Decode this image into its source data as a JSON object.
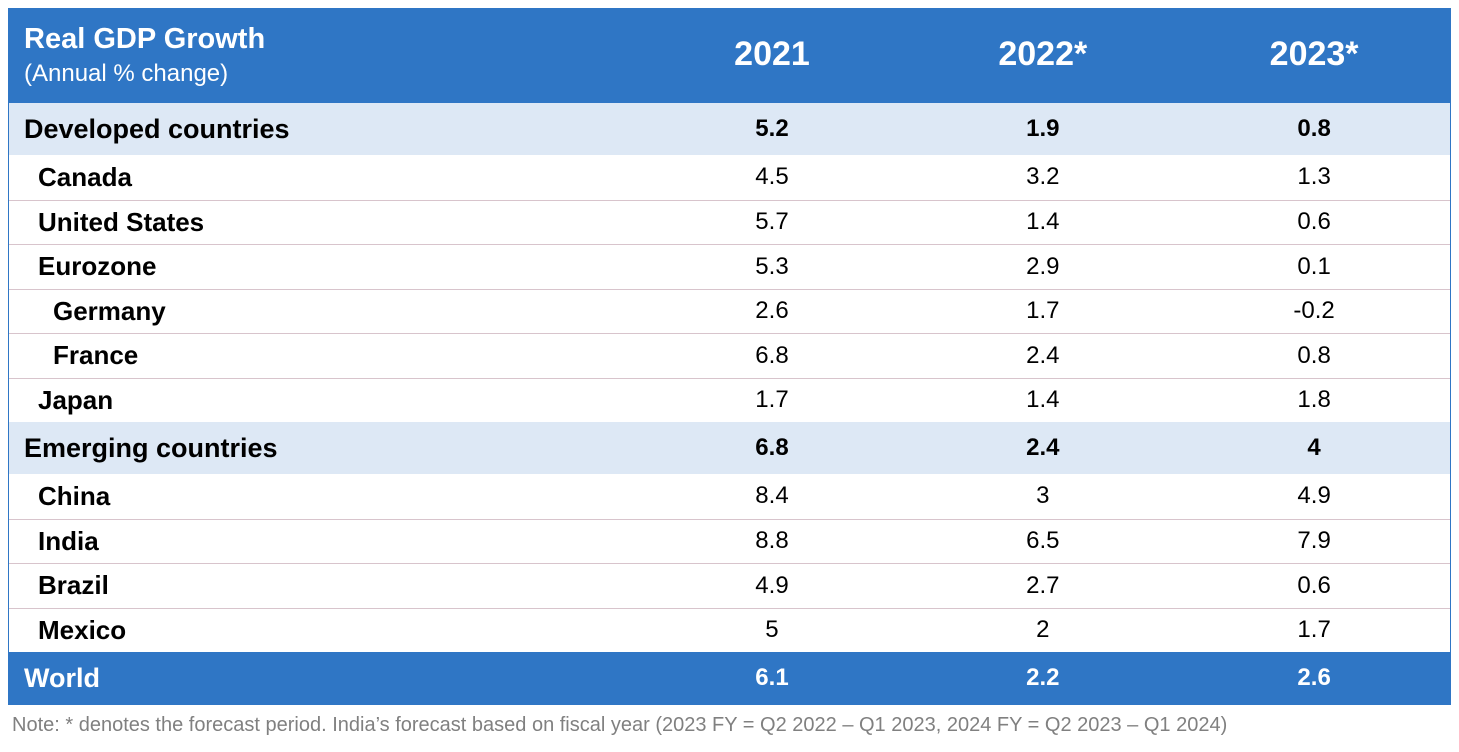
{
  "chart_data": {
    "type": "table",
    "title": "Real GDP Growth",
    "subtitle": "(Annual % change)",
    "columns": [
      "2021",
      "2022*",
      "2023*"
    ],
    "groups": [
      {
        "name": "Developed countries",
        "values": [
          "5.2",
          "1.9",
          "0.8"
        ],
        "rows": [
          {
            "name": "Canada",
            "level": 1,
            "values": [
              "4.5",
              "3.2",
              "1.3"
            ]
          },
          {
            "name": "United States",
            "level": 1,
            "values": [
              "5.7",
              "1.4",
              "0.6"
            ]
          },
          {
            "name": "Eurozone",
            "level": 1,
            "values": [
              "5.3",
              "2.9",
              "0.1"
            ]
          },
          {
            "name": "Germany",
            "level": 2,
            "values": [
              "2.6",
              "1.7",
              "-0.2"
            ]
          },
          {
            "name": "France",
            "level": 2,
            "values": [
              "6.8",
              "2.4",
              "0.8"
            ]
          },
          {
            "name": "Japan",
            "level": 1,
            "values": [
              "1.7",
              "1.4",
              "1.8"
            ]
          }
        ]
      },
      {
        "name": "Emerging countries",
        "values": [
          "6.8",
          "2.4",
          "4"
        ],
        "rows": [
          {
            "name": "China",
            "level": 1,
            "values": [
              "8.4",
              "3",
              "4.9"
            ]
          },
          {
            "name": "India",
            "level": 1,
            "values": [
              "8.8",
              "6.5",
              "7.9"
            ]
          },
          {
            "name": "Brazil",
            "level": 1,
            "values": [
              "4.9",
              "2.7",
              "0.6"
            ]
          },
          {
            "name": "Mexico",
            "level": 1,
            "values": [
              "5",
              "2",
              "1.7"
            ]
          }
        ]
      }
    ],
    "total": {
      "name": "World",
      "values": [
        "6.1",
        "2.2",
        "2.6"
      ]
    },
    "note": "Note: * denotes the forecast period. India’s forecast based on fiscal year (2023 FY = Q2 2022 – Q1 2023, 2024 FY = Q2 2023 – Q1 2024)"
  },
  "colors": {
    "header_bg": "#2f76c5",
    "group_bg": "#dde8f5",
    "row_border": "#d8c4cc",
    "note_text": "#808080"
  }
}
